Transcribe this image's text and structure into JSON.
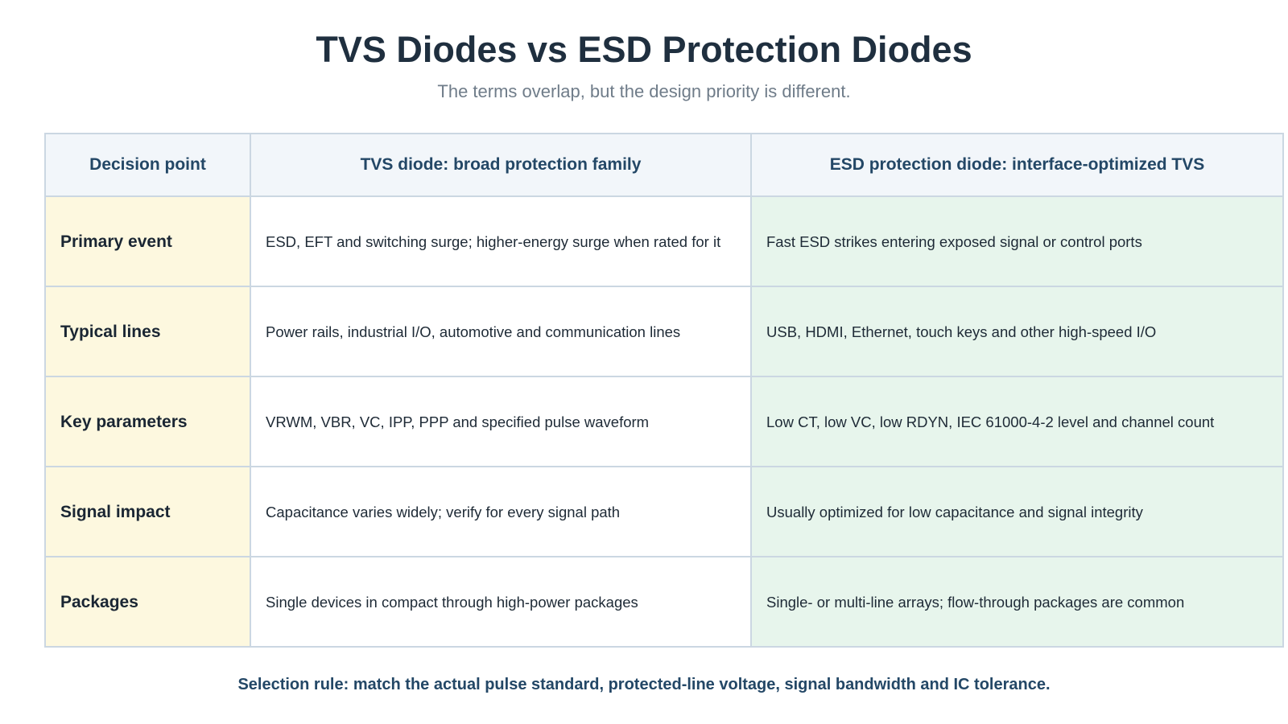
{
  "title": "TVS Diodes vs ESD Protection Diodes",
  "subtitle": "The terms overlap, but the design priority is different.",
  "table": {
    "headers": [
      "Decision point",
      "TVS diode: broad protection family",
      "ESD protection diode: interface-optimized TVS"
    ],
    "rows": [
      {
        "point": "Primary event",
        "tvs": "ESD, EFT and switching surge; higher-energy surge when rated for it",
        "esd": "Fast ESD strikes entering exposed signal or control ports"
      },
      {
        "point": "Typical lines",
        "tvs": "Power rails, industrial I/O, automotive and communication lines",
        "esd": "USB, HDMI, Ethernet, touch keys and other high-speed I/O"
      },
      {
        "point": "Key parameters",
        "tvs": "VRWM, VBR, VC, IPP, PPP and specified pulse waveform",
        "esd": "Low CT, low VC, low RDYN, IEC 61000-4-2 level and channel count"
      },
      {
        "point": "Signal impact",
        "tvs": "Capacitance varies widely; verify for every signal path",
        "esd": "Usually optimized for low capacitance and signal integrity"
      },
      {
        "point": "Packages",
        "tvs": "Single devices in compact through high-power packages",
        "esd": "Single- or multi-line arrays; flow-through packages are common"
      }
    ]
  },
  "footer": "Selection rule: match the actual pulse standard, protected-line voltage, signal bandwidth and IC tolerance."
}
